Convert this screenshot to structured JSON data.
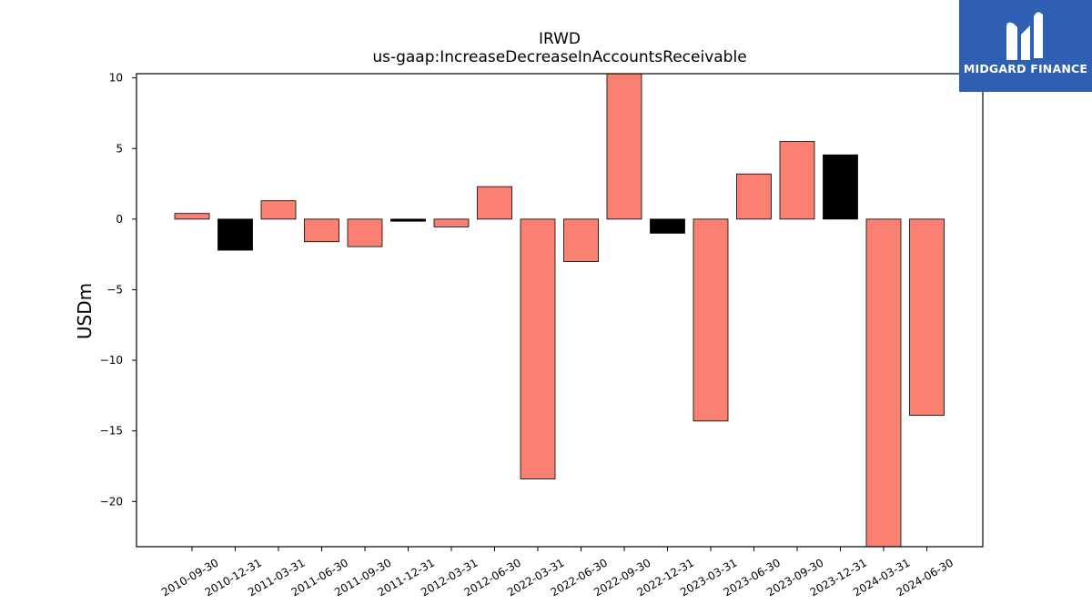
{
  "chart_data": {
    "type": "bar",
    "title": "IRWD",
    "subtitle": "us-gaap:IncreaseDecreaseInAccountsReceivable",
    "xlabel": "",
    "ylabel": "USDm",
    "ylim": [
      -23.2,
      10.3
    ],
    "yticks": [
      10,
      5,
      0,
      -5,
      -10,
      -15,
      -20
    ],
    "ytick_labels": [
      "10",
      "5",
      "0",
      "−5",
      "−10",
      "−15",
      "−20"
    ],
    "grid": false,
    "categories": [
      "2010-09-30",
      "2010-12-31",
      "2011-03-31",
      "2011-06-30",
      "2011-09-30",
      "2011-12-31",
      "2012-03-31",
      "2012-06-30",
      "2022-03-31",
      "2022-06-30",
      "2022-09-30",
      "2022-12-31",
      "2023-03-31",
      "2023-06-30",
      "2023-09-30",
      "2023-12-31",
      "2024-03-31",
      "2024-06-30"
    ],
    "values": [
      0.4,
      -2.2,
      1.3,
      -1.6,
      -1.95,
      -0.15,
      -0.55,
      2.3,
      -18.4,
      -3.0,
      10.3,
      -1.0,
      -14.3,
      3.2,
      5.5,
      4.55,
      -23.2,
      -13.9
    ],
    "colors": [
      "#fa8072",
      "#000000",
      "#fa8072",
      "#fa8072",
      "#fa8072",
      "#000000",
      "#fa8072",
      "#fa8072",
      "#fa8072",
      "#fa8072",
      "#fa8072",
      "#000000",
      "#fa8072",
      "#fa8072",
      "#fa8072",
      "#000000",
      "#fa8072",
      "#fa8072"
    ]
  },
  "logo": {
    "text": "MIDGARD FINANCE",
    "color": "#2f5fb3"
  }
}
